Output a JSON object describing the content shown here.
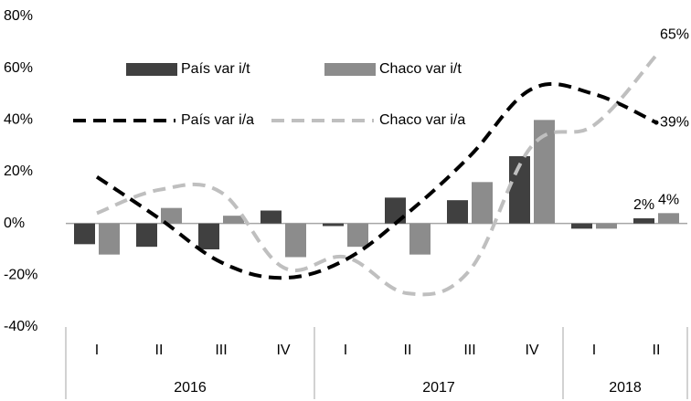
{
  "chart_data": {
    "type": "bar_line",
    "categories": [
      "I",
      "II",
      "III",
      "IV",
      "I",
      "II",
      "III",
      "IV",
      "I",
      "II"
    ],
    "category_groups": [
      {
        "name": "2016",
        "count": 4
      },
      {
        "name": "2017",
        "count": 4
      },
      {
        "name": "2018",
        "count": 2
      }
    ],
    "series": [
      {
        "name": "País var i/t",
        "kind": "bar",
        "color": "#404040",
        "values": [
          -8,
          -9,
          -10,
          5,
          -1,
          10,
          9,
          26,
          -2,
          2
        ],
        "value_labels": [
          null,
          null,
          null,
          null,
          null,
          null,
          null,
          null,
          null,
          "2%"
        ]
      },
      {
        "name": "Chaco var i/t",
        "kind": "bar",
        "color": "#8c8c8c",
        "values": [
          -12,
          6,
          3,
          -13,
          -9,
          -12,
          16,
          40,
          -2,
          4
        ],
        "value_labels": [
          null,
          null,
          null,
          null,
          null,
          null,
          null,
          null,
          null,
          "4%"
        ]
      },
      {
        "name": "País var i/a",
        "kind": "line",
        "color": "#000000",
        "values": [
          18,
          2,
          -15,
          -21,
          -14,
          4,
          26,
          52,
          50,
          39
        ],
        "value_labels": [
          null,
          null,
          null,
          null,
          null,
          null,
          null,
          null,
          null,
          "39%"
        ]
      },
      {
        "name": "Chaco var i/a",
        "kind": "line",
        "color": "#bfbfbf",
        "values": [
          4,
          13,
          12,
          -17,
          -13,
          -27,
          -18,
          30,
          38,
          65
        ],
        "value_labels": [
          null,
          null,
          null,
          null,
          null,
          null,
          null,
          null,
          null,
          "65%"
        ]
      }
    ],
    "ylim": [
      -40,
      80
    ],
    "yticks": [
      {
        "value": -40,
        "label": "-40%"
      },
      {
        "value": -20,
        "label": "-20%"
      },
      {
        "value": 0,
        "label": "0%"
      },
      {
        "value": 20,
        "label": "20%"
      },
      {
        "value": 40,
        "label": "40%"
      },
      {
        "value": 60,
        "label": "60%"
      },
      {
        "value": 80,
        "label": "80%"
      }
    ],
    "grid": false,
    "legend": "top-left"
  }
}
